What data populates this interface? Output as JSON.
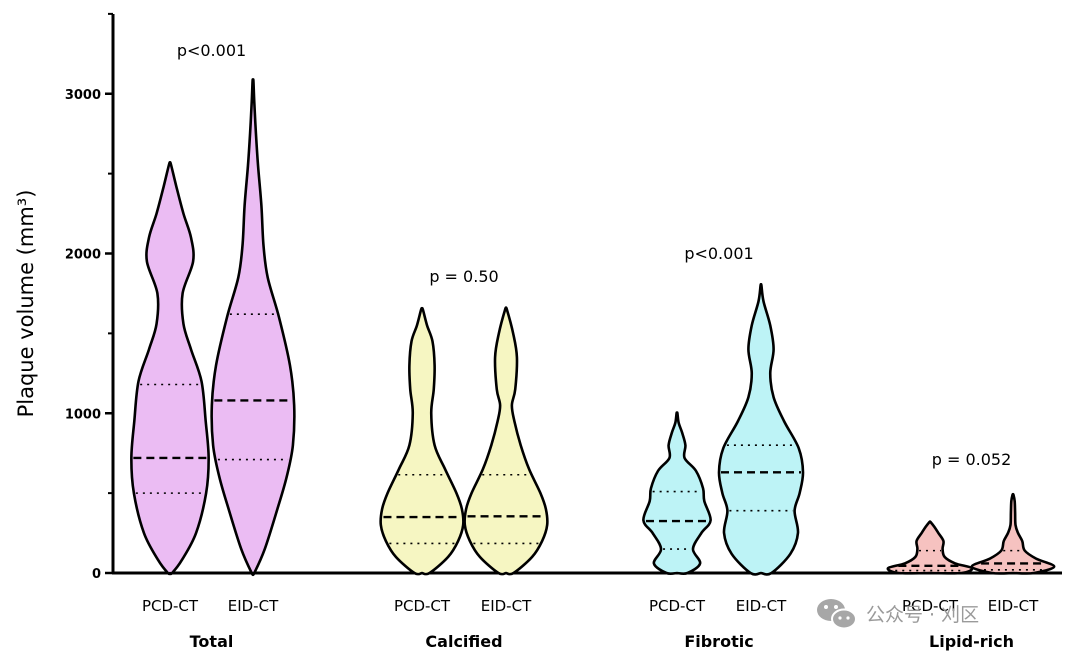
{
  "chart_data": {
    "type": "violin",
    "ylabel": "Plaque volume (mm³)",
    "ylim": [
      0,
      3500
    ],
    "yticks": [
      0,
      1000,
      2000,
      3000
    ],
    "groups": [
      {
        "name": "Total",
        "p_value": "p<0.001",
        "colors": {
          "fill": "#ebbcf3"
        },
        "violins": [
          {
            "label": "PCD-CT",
            "min": 0,
            "max": 2560,
            "median": 720,
            "q1": 500,
            "q3": 1180,
            "profile": [
              [
                0,
                0.05
              ],
              [
                80,
                0.28
              ],
              [
                250,
                0.62
              ],
              [
                500,
                0.86
              ],
              [
                720,
                0.92
              ],
              [
                950,
                0.85
              ],
              [
                1200,
                0.75
              ],
              [
                1400,
                0.5
              ],
              [
                1560,
                0.32
              ],
              [
                1750,
                0.3
              ],
              [
                1950,
                0.55
              ],
              [
                2100,
                0.5
              ],
              [
                2250,
                0.32
              ],
              [
                2420,
                0.15
              ],
              [
                2560,
                0.02
              ]
            ]
          },
          {
            "label": "EID-CT",
            "min": 0,
            "max": 3080,
            "median": 1080,
            "q1": 710,
            "q3": 1620,
            "profile": [
              [
                0,
                0.03
              ],
              [
                150,
                0.28
              ],
              [
                400,
                0.58
              ],
              [
                600,
                0.8
              ],
              [
                800,
                0.95
              ],
              [
                1050,
                0.98
              ],
              [
                1300,
                0.88
              ],
              [
                1600,
                0.62
              ],
              [
                1850,
                0.35
              ],
              [
                2050,
                0.25
              ],
              [
                2300,
                0.2
              ],
              [
                2550,
                0.12
              ],
              [
                2750,
                0.07
              ],
              [
                2950,
                0.03
              ],
              [
                3080,
                0.01
              ]
            ]
          }
        ]
      },
      {
        "name": "Calcified",
        "p_value": "p = 0.50",
        "colors": {
          "fill": "#f6f6c2"
        },
        "violins": [
          {
            "label": "PCD-CT",
            "min": 0,
            "max": 1650,
            "median": 350,
            "q1": 185,
            "q3": 615,
            "profile": [
              [
                0,
                0.18
              ],
              [
                100,
                0.62
              ],
              [
                200,
                0.86
              ],
              [
                300,
                0.98
              ],
              [
                400,
                0.95
              ],
              [
                500,
                0.82
              ],
              [
                650,
                0.55
              ],
              [
                800,
                0.3
              ],
              [
                1000,
                0.22
              ],
              [
                1150,
                0.28
              ],
              [
                1300,
                0.3
              ],
              [
                1450,
                0.25
              ],
              [
                1550,
                0.12
              ],
              [
                1650,
                0.02
              ]
            ]
          },
          {
            "label": "EID-CT",
            "min": 0,
            "max": 1650,
            "median": 355,
            "q1": 185,
            "q3": 615,
            "profile": [
              [
                0,
                0.18
              ],
              [
                100,
                0.62
              ],
              [
                200,
                0.86
              ],
              [
                300,
                0.98
              ],
              [
                400,
                0.95
              ],
              [
                500,
                0.82
              ],
              [
                650,
                0.55
              ],
              [
                800,
                0.35
              ],
              [
                950,
                0.2
              ],
              [
                1050,
                0.14
              ],
              [
                1150,
                0.22
              ],
              [
                1350,
                0.26
              ],
              [
                1500,
                0.17
              ],
              [
                1650,
                0.02
              ]
            ]
          }
        ]
      },
      {
        "name": "Fibrotic",
        "p_value": "p<0.001",
        "colors": {
          "fill": "#bdf3f6"
        },
        "violins": [
          {
            "label": "PCD-CT",
            "min": 0,
            "max": 1000,
            "median": 325,
            "q1": 150,
            "q3": 510,
            "profile": [
              [
                0,
                0.25
              ],
              [
                60,
                0.55
              ],
              [
                150,
                0.38
              ],
              [
                250,
                0.58
              ],
              [
                330,
                0.8
              ],
              [
                450,
                0.65
              ],
              [
                530,
                0.62
              ],
              [
                640,
                0.45
              ],
              [
                720,
                0.18
              ],
              [
                800,
                0.2
              ],
              [
                880,
                0.12
              ],
              [
                940,
                0.04
              ],
              [
                1000,
                0.01
              ]
            ]
          },
          {
            "label": "EID-CT",
            "min": 0,
            "max": 1800,
            "median": 630,
            "q1": 390,
            "q3": 800,
            "profile": [
              [
                0,
                0.25
              ],
              [
                120,
                0.7
              ],
              [
                250,
                0.88
              ],
              [
                390,
                0.8
              ],
              [
                500,
                0.92
              ],
              [
                630,
                1.0
              ],
              [
                780,
                0.9
              ],
              [
                950,
                0.55
              ],
              [
                1100,
                0.3
              ],
              [
                1250,
                0.22
              ],
              [
                1400,
                0.3
              ],
              [
                1550,
                0.22
              ],
              [
                1700,
                0.06
              ],
              [
                1800,
                0.01
              ]
            ]
          }
        ]
      },
      {
        "name": "Lipid-rich",
        "p_value": "p = 0.052",
        "colors": {
          "fill": "#f6c2c0"
        },
        "violins": [
          {
            "label": "PCD-CT",
            "min": 0,
            "max": 320,
            "median": 45,
            "q1": 15,
            "q3": 140,
            "profile": [
              [
                0,
                0.75
              ],
              [
                30,
                1.0
              ],
              [
                60,
                0.6
              ],
              [
                100,
                0.35
              ],
              [
                150,
                0.3
              ],
              [
                200,
                0.32
              ],
              [
                250,
                0.2
              ],
              [
                290,
                0.1
              ],
              [
                320,
                0.01
              ]
            ]
          },
          {
            "label": "EID-CT",
            "min": 0,
            "max": 490,
            "median": 60,
            "q1": 20,
            "q3": 140,
            "profile": [
              [
                0,
                0.5
              ],
              [
                40,
                0.98
              ],
              [
                90,
                0.55
              ],
              [
                140,
                0.28
              ],
              [
                200,
                0.22
              ],
              [
                250,
                0.12
              ],
              [
                300,
                0.06
              ],
              [
                380,
                0.05
              ],
              [
                450,
                0.04
              ],
              [
                490,
                0.01
              ]
            ]
          }
        ]
      }
    ]
  },
  "watermark": {
    "icon": "wechat-icon",
    "text": "公众号 · 刈区"
  }
}
